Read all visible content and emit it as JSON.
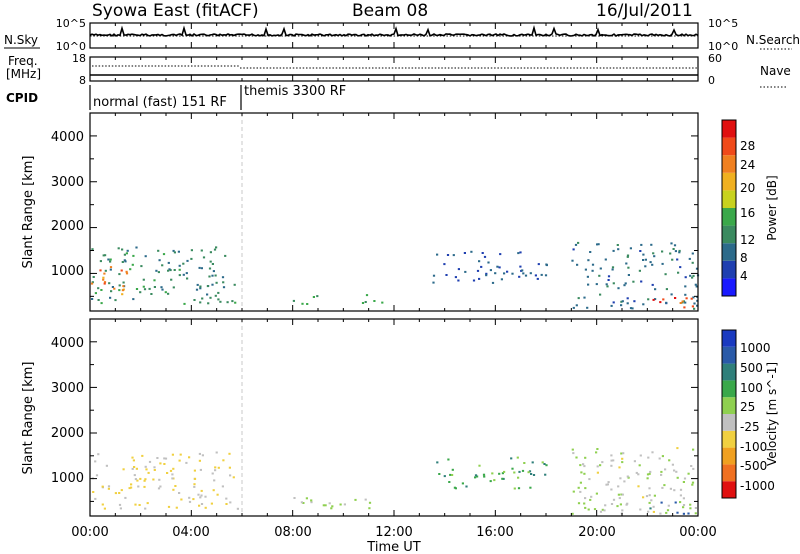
{
  "header": {
    "station": "Syowa East (fitACF)",
    "beam": "Beam 08",
    "date": "16/Jul/2011"
  },
  "panels": {
    "nsky_label": "N.Sky",
    "nsky_ticks": [
      "10^5",
      "10^0"
    ],
    "nsearch_label": "N.Search",
    "nsearch_ticks": [
      "10^5",
      "10^0"
    ],
    "freq_label_1": "Freq.",
    "freq_label_2": "[MHz]",
    "freq_ticks": [
      "18",
      "8"
    ],
    "nave_label": "Nave",
    "nave_ticks": [
      "60",
      "0"
    ],
    "cpid_label": "CPID",
    "cpid_segments": [
      "normal (fast) 151 RF",
      "themis 3300 RF"
    ]
  },
  "axes": {
    "ylabel": "Slant Range [km]",
    "xlabel": "Time UT",
    "y_ticks": [
      "1000",
      "2000",
      "3000",
      "4000"
    ],
    "x_ticks": [
      "00:00",
      "04:00",
      "08:00",
      "12:00",
      "16:00",
      "20:00",
      "00:00"
    ]
  },
  "colorbars": {
    "power": {
      "label": "Power [dB]",
      "ticks": [
        "4",
        "8",
        "12",
        "16",
        "20",
        "24",
        "28"
      ],
      "colors": [
        "#1a1aff",
        "#1f3fb0",
        "#2c6a8a",
        "#3a8a5f",
        "#3aa84a",
        "#c8d21f",
        "#f0b020",
        "#f08020",
        "#f04a1a",
        "#e01010"
      ]
    },
    "velocity": {
      "label": "Velocity [m s^-1]",
      "ticks": [
        "1000",
        "500",
        "100",
        "25",
        "-25",
        "-100",
        "-500",
        "-1000"
      ],
      "colors": [
        "#1a3ac0",
        "#2a5aa8",
        "#2f7f7a",
        "#3aa84a",
        "#8fd050",
        "#c0c0c0",
        "#f0d040",
        "#f0a020",
        "#f07020",
        "#e01010"
      ]
    }
  },
  "chart_data": [
    {
      "type": "heatmap",
      "title": "Power",
      "ylabel": "Slant Range [km]",
      "xlabel": "Time UT",
      "xlim": [
        "00:00",
        "24:00"
      ],
      "ylim": [
        180,
        4500
      ],
      "colorbar": "Power [dB]",
      "clim": [
        0,
        30
      ],
      "regions": [
        {
          "t0": 0.0,
          "t1": 5.8,
          "r0": 350,
          "r1": 1600,
          "value": 10
        },
        {
          "t0": 0.0,
          "t1": 1.5,
          "r0": 500,
          "r1": 1200,
          "value": 22
        },
        {
          "t0": 7.8,
          "t1": 11.5,
          "r0": 350,
          "r1": 600,
          "value": 12
        },
        {
          "t0": 13.5,
          "t1": 18.0,
          "r0": 800,
          "r1": 1500,
          "value": 6
        },
        {
          "t0": 19.0,
          "t1": 24.0,
          "r0": 250,
          "r1": 1700,
          "value": 8
        },
        {
          "t0": 22.0,
          "t1": 24.0,
          "r0": 250,
          "r1": 500,
          "value": 26
        }
      ]
    },
    {
      "type": "heatmap",
      "title": "Velocity",
      "ylabel": "Slant Range [km]",
      "xlabel": "Time UT",
      "xlim": [
        "00:00",
        "24:00"
      ],
      "ylim": [
        180,
        4500
      ],
      "colorbar": "Velocity [m s^-1]",
      "clim": [
        -1000,
        1000
      ],
      "regions": [
        {
          "t0": 0.0,
          "t1": 5.8,
          "r0": 350,
          "r1": 1600,
          "value": -200
        },
        {
          "t0": 7.8,
          "t1": 11.5,
          "r0": 350,
          "r1": 600,
          "value": 40
        },
        {
          "t0": 13.5,
          "t1": 18.0,
          "r0": 800,
          "r1": 1500,
          "value": 300
        },
        {
          "t0": 19.0,
          "t1": 24.0,
          "r0": 250,
          "r1": 1700,
          "value": -50
        },
        {
          "t0": 22.0,
          "t1": 24.0,
          "r0": 250,
          "r1": 500,
          "value": 600
        }
      ]
    }
  ]
}
